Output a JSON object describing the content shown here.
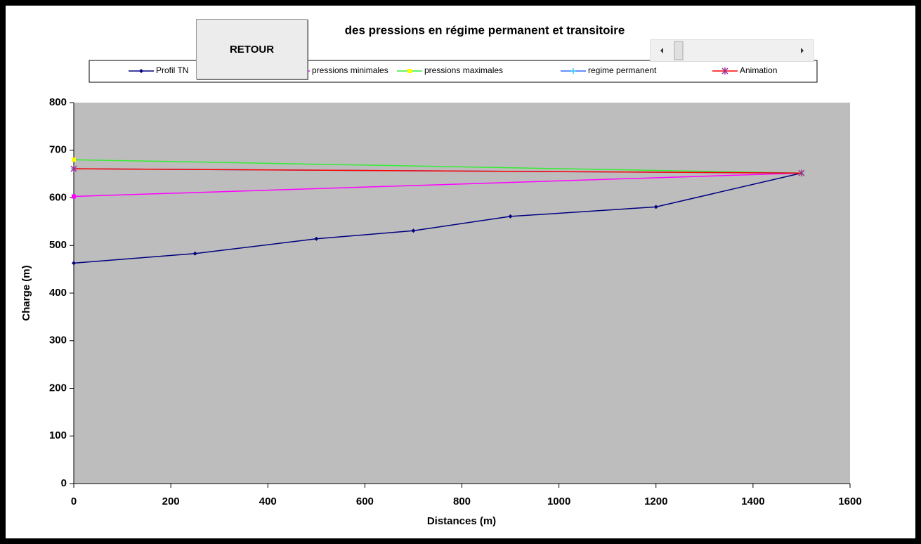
{
  "chart_data": {
    "type": "line",
    "title": "des pressions en régime permanent et transitoire",
    "x_label": "Distances (m)",
    "y_label": "Charge (m)",
    "xlim": [
      0,
      1600
    ],
    "xticks": [
      0,
      200,
      400,
      600,
      800,
      1000,
      1200,
      1400,
      1600
    ],
    "ylim": [
      0,
      800
    ],
    "yticks": [
      0,
      100,
      200,
      300,
      400,
      500,
      600,
      700,
      800
    ],
    "legend": "top",
    "series": [
      {
        "name": "Profil TN",
        "color": "#000080",
        "marker": "diamond",
        "marker_color": "#000080",
        "x": [
          0,
          250,
          500,
          700,
          900,
          1200,
          1500
        ],
        "values": [
          463,
          483,
          514,
          531,
          561,
          581,
          652
        ]
      },
      {
        "name": "pressions minimales",
        "color": "#ff00ff",
        "marker": "square",
        "marker_color": "#ff00ff",
        "x": [
          0,
          1500
        ],
        "values": [
          603,
          652
        ]
      },
      {
        "name": "pressions maximales",
        "color": "#33ee33",
        "marker": "square",
        "marker_color": "#ffff00",
        "x": [
          0,
          1500
        ],
        "values": [
          680,
          652
        ]
      },
      {
        "name": "regime permanent",
        "color": "#3366ff",
        "marker": "cross",
        "marker_color": "#33ccff",
        "x": [
          0,
          1500
        ],
        "values": [
          661,
          652
        ]
      },
      {
        "name": "Animation",
        "color": "#ff0000",
        "marker": "star",
        "marker_color": "#993399",
        "x": [
          0,
          1500
        ],
        "values": [
          661,
          652
        ]
      }
    ]
  },
  "button": "RETOUR"
}
